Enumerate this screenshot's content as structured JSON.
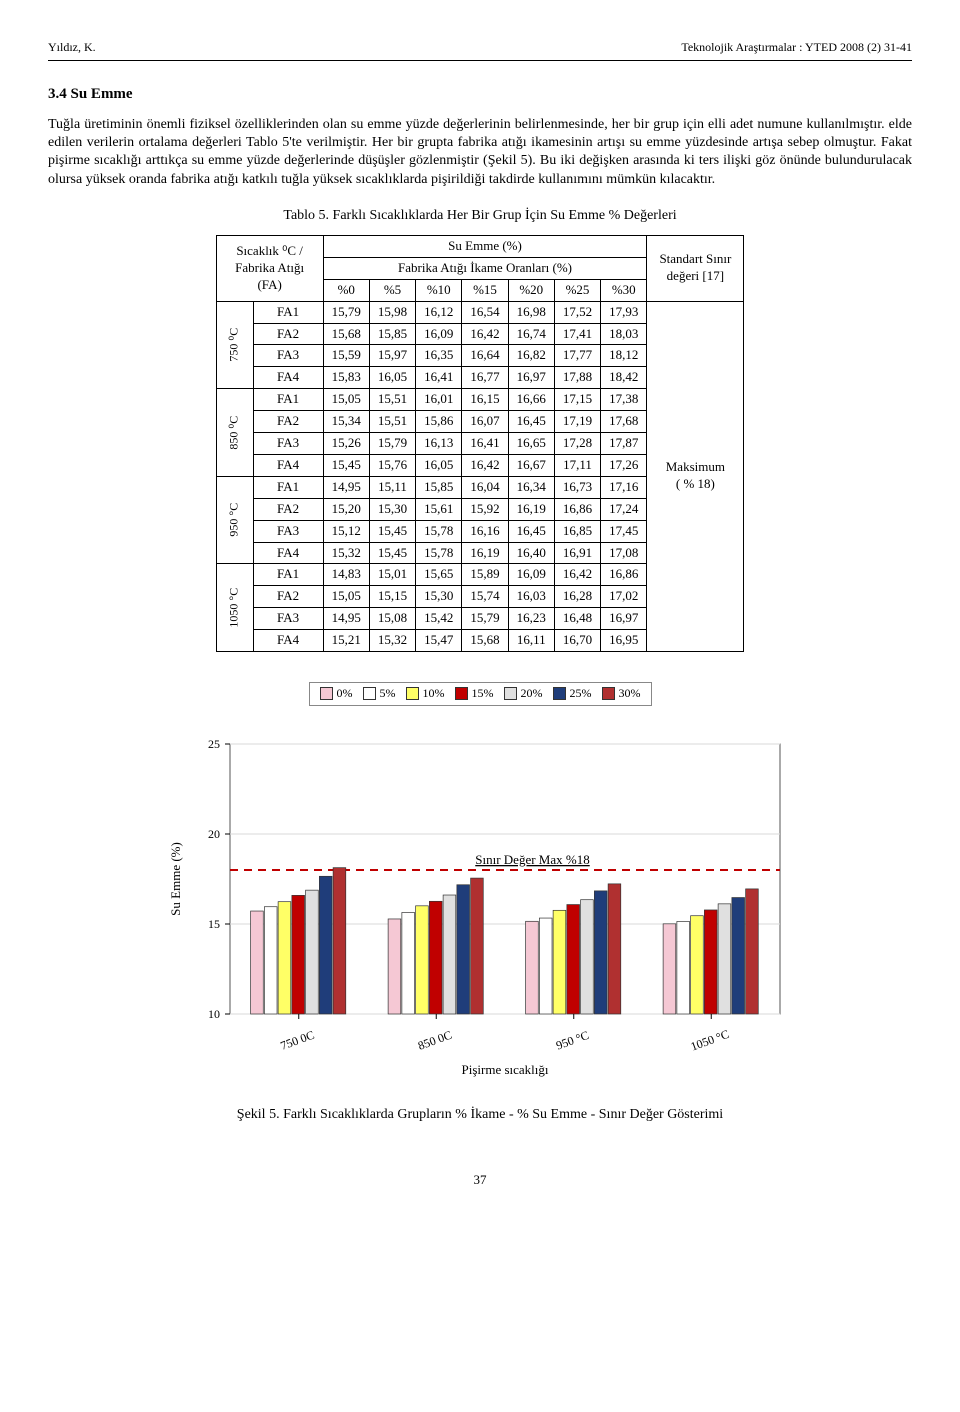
{
  "header": {
    "left": "Yıldız, K.",
    "right": "Teknolojik Araştırmalar :  YTED  2008 (2) 31-41"
  },
  "section": {
    "number": "3.4",
    "title": "Su Emme"
  },
  "paragraph": "Tuğla üretiminin önemli fiziksel özelliklerinden olan su emme yüzde değerlerinin belirlenmesinde, her bir grup için elli adet numune kullanılmıştır. elde edilen verilerin ortalama değerleri Tablo 5'te verilmiştir. Her bir grupta fabrika atığı ikamesinin artışı su emme yüzdesinde artışa sebep olmuştur. Fakat pişirme sıcaklığı arttıkça su emme yüzde değerlerinde düşüşler gözlenmiştir (Şekil 5).    Bu iki değişken arasında ki ters ilişki göz önünde bulundurulacak olursa yüksek oranda fabrika atığı katkılı tuğla yüksek sıcaklıklarda pişirildiği takdirde kullanımını mümkün kılacaktır.",
  "table_caption": "Tablo 5. Farklı Sıcaklıklarda Her Bir Grup İçin Su Emme % Değerleri",
  "table": {
    "col_group_labels": {
      "left": "Sıcaklık  ⁰C / Fabrika Atığı (FA)",
      "center_top": "Su Emme (%)",
      "center_sub": "Fabrika Atığı İkame Oranları (%)",
      "right": "Standart Sınır değeri [17]"
    },
    "percent_headers": [
      "%0",
      "%5",
      "%10",
      "%15",
      "%20",
      "%25",
      "%30"
    ],
    "temp_groups": [
      {
        "label": "750 ⁰C",
        "rows": [
          {
            "fa": "FA1",
            "v": [
              "15,79",
              "15,98",
              "16,12",
              "16,54",
              "16,98",
              "17,52",
              "17,93"
            ]
          },
          {
            "fa": "FA2",
            "v": [
              "15,68",
              "15,85",
              "16,09",
              "16,42",
              "16,74",
              "17,41",
              "18,03"
            ]
          },
          {
            "fa": "FA3",
            "v": [
              "15,59",
              "15,97",
              "16,35",
              "16,64",
              "16,82",
              "17,77",
              "18,12"
            ]
          },
          {
            "fa": "FA4",
            "v": [
              "15,83",
              "16,05",
              "16,41",
              "16,77",
              "16,97",
              "17,88",
              "18,42"
            ]
          }
        ]
      },
      {
        "label": "850 ⁰C",
        "rows": [
          {
            "fa": "FA1",
            "v": [
              "15,05",
              "15,51",
              "16,01",
              "16,15",
              "16,66",
              "17,15",
              "17,38"
            ]
          },
          {
            "fa": "FA2",
            "v": [
              "15,34",
              "15,51",
              "15,86",
              "16,07",
              "16,45",
              "17,19",
              "17,68"
            ]
          },
          {
            "fa": "FA3",
            "v": [
              "15,26",
              "15,79",
              "16,13",
              "16,41",
              "16,65",
              "17,28",
              "17,87"
            ]
          },
          {
            "fa": "FA4",
            "v": [
              "15,45",
              "15,76",
              "16,05",
              "16,42",
              "16,67",
              "17,11",
              "17,26"
            ]
          }
        ]
      },
      {
        "label": "950 °C",
        "rows": [
          {
            "fa": "FA1",
            "v": [
              "14,95",
              "15,11",
              "15,85",
              "16,04",
              "16,34",
              "16,73",
              "17,16"
            ]
          },
          {
            "fa": "FA2",
            "v": [
              "15,20",
              "15,30",
              "15,61",
              "15,92",
              "16,19",
              "16,86",
              "17,24"
            ]
          },
          {
            "fa": "FA3",
            "v": [
              "15,12",
              "15,45",
              "15,78",
              "16,16",
              "16,45",
              "16,85",
              "17,45"
            ]
          },
          {
            "fa": "FA4",
            "v": [
              "15,32",
              "15,45",
              "15,78",
              "16,19",
              "16,40",
              "16,91",
              "17,08"
            ]
          }
        ]
      },
      {
        "label": "1050 °C",
        "rows": [
          {
            "fa": "FA1",
            "v": [
              "14,83",
              "15,01",
              "15,65",
              "15,89",
              "16,09",
              "16,42",
              "16,86"
            ]
          },
          {
            "fa": "FA2",
            "v": [
              "15,05",
              "15,15",
              "15,30",
              "15,74",
              "16,03",
              "16,28",
              "17,02"
            ]
          },
          {
            "fa": "FA3",
            "v": [
              "14,95",
              "15,08",
              "15,42",
              "15,79",
              "16,23",
              "16,48",
              "16,97"
            ]
          },
          {
            "fa": "FA4",
            "v": [
              "15,21",
              "15,32",
              "15,47",
              "15,68",
              "16,11",
              "16,70",
              "16,95"
            ]
          }
        ]
      }
    ],
    "right_cell": {
      "line1": "Maksimum",
      "line2": "( % 18)"
    }
  },
  "chart": {
    "type": "bar",
    "legend_labels": [
      "0%",
      "5%",
      "10%",
      "15%",
      "20%",
      "25%",
      "30%"
    ],
    "legend_colors": [
      "#f5c8d4",
      "#ffffff",
      "#ffff66",
      "#c00000",
      "#e0e0e0",
      "#1f3d7a",
      "#b03030"
    ],
    "ylabel": "Su Emme  (%)",
    "xlabel": "Pişirme sıcaklığı",
    "annotation": "Sınır Değer Max %18",
    "ylim": [
      10,
      25
    ],
    "yticks": [
      10,
      15,
      20,
      25
    ],
    "ref_line": 18,
    "ref_color": "#c00000",
    "background_color": "#ffffff",
    "grid_color": "#d9d9d9",
    "categories": [
      "750 0C",
      "850 0C",
      "950 °C",
      "1050 °C"
    ],
    "series": [
      {
        "color": "#f5c8d4",
        "values": [
          15.72,
          15.28,
          15.15,
          15.01
        ]
      },
      {
        "color": "#ffffff",
        "values": [
          15.96,
          15.64,
          15.33,
          15.14
        ]
      },
      {
        "color": "#ffff66",
        "values": [
          16.24,
          16.01,
          15.76,
          15.46
        ]
      },
      {
        "color": "#c00000",
        "values": [
          16.59,
          16.26,
          16.08,
          15.78
        ]
      },
      {
        "color": "#e0e0e0",
        "values": [
          16.88,
          16.61,
          16.35,
          16.12
        ]
      },
      {
        "color": "#1f3d7a",
        "values": [
          17.65,
          17.18,
          16.84,
          16.47
        ]
      },
      {
        "color": "#b03030",
        "values": [
          18.13,
          17.55,
          17.23,
          16.95
        ]
      }
    ],
    "bar_width": 0.1,
    "group_gap": 0.3
  },
  "figure_caption": "Şekil 5. Farklı Sıcaklıklarda Grupların  % İkame - % Su Emme - Sınır Değer Gösterimi",
  "page_number": "37"
}
